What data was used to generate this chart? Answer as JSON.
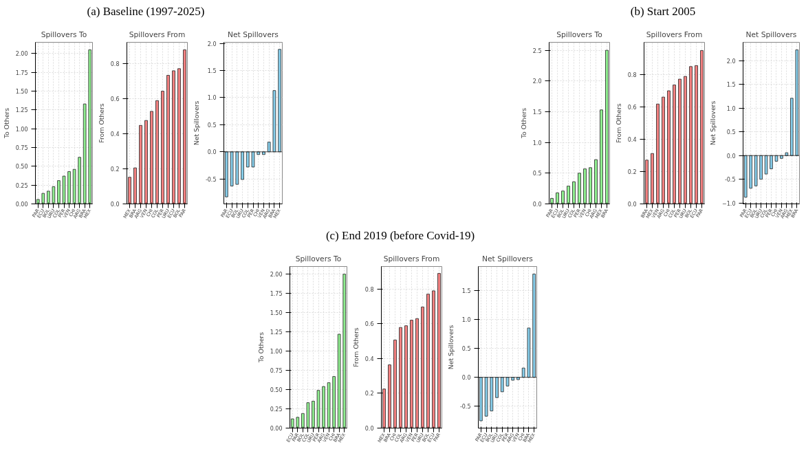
{
  "chart_data": [
    {
      "type": "bar",
      "title": "Spillovers To",
      "ylabel": "To Others",
      "annotations": [
        "(a) Baseline (1997-2025)"
      ],
      "categories": [
        "PAR",
        "ECU",
        "BOL",
        "URU",
        "COL",
        "PER",
        "VEN",
        "CHI",
        "ARG",
        "BRA",
        "MEX"
      ],
      "values": [
        0.06,
        0.14,
        0.17,
        0.23,
        0.31,
        0.37,
        0.43,
        0.46,
        0.62,
        1.33,
        2.05
      ],
      "color": "#90ee90",
      "ylim": [
        0,
        2.15
      ],
      "yticks": [
        {
          "value": 0,
          "label": "0.00"
        },
        0.25,
        {
          "value": 0.5,
          "label": "0.50"
        },
        0.75,
        {
          "value": 1,
          "label": "1.00"
        },
        1.25,
        {
          "value": 1.5,
          "label": "1.50"
        },
        1.75,
        {
          "value": 2,
          "label": "2.00"
        }
      ],
      "grid": true
    },
    {
      "type": "bar",
      "title": "Spillovers From",
      "ylabel": "From Others",
      "categories": [
        "MEX",
        "BRA",
        "ARG",
        "VEN",
        "CHI",
        "COL",
        "PER",
        "URU",
        "ECU",
        "BOL",
        "PAR"
      ],
      "values": [
        0.152,
        0.205,
        0.447,
        0.475,
        0.527,
        0.588,
        0.642,
        0.732,
        0.758,
        0.77,
        0.877
      ],
      "color": "#f08080",
      "ylim": [
        0,
        0.92
      ],
      "yticks": [
        {
          "value": 0,
          "label": "0.0"
        },
        0.2,
        0.4,
        0.6,
        0.8
      ],
      "grid": true
    },
    {
      "type": "bar",
      "title": "Net Spillovers",
      "ylabel": "Net Spillovers",
      "categories": [
        "PAR",
        "ECU",
        "BOL",
        "URU",
        "COL",
        "PER",
        "CHI",
        "VEN",
        "ARG",
        "BRA",
        "MEX"
      ],
      "values": [
        -0.83,
        -0.63,
        -0.6,
        -0.51,
        -0.28,
        -0.28,
        -0.05,
        -0.05,
        0.18,
        1.13,
        1.89
      ],
      "color": "#87ceeb",
      "ylim": [
        -0.96,
        2.02
      ],
      "yticks": [
        -0.5,
        {
          "value": 0,
          "label": "0.0"
        },
        0.5,
        {
          "value": 1,
          "label": "1.0"
        },
        1.5,
        {
          "value": 2,
          "label": "2.0"
        }
      ],
      "grid": true
    },
    {
      "type": "bar",
      "title": "Spillovers To",
      "ylabel": "To Others",
      "annotations": [
        "(b) Start 2005"
      ],
      "categories": [
        "PAR",
        "ECU",
        "BOL",
        "URU",
        "COL",
        "PER",
        "VEN",
        "CHI",
        "ARG",
        "MEX",
        "BRA"
      ],
      "values": [
        0.09,
        0.18,
        0.21,
        0.29,
        0.36,
        0.5,
        0.57,
        0.59,
        0.72,
        1.53,
        2.5
      ],
      "color": "#90ee90",
      "ylim": [
        0,
        2.63
      ],
      "yticks": [
        {
          "value": 0,
          "label": "0.0"
        },
        0.5,
        {
          "value": 1,
          "label": "1.0"
        },
        1.5,
        {
          "value": 2,
          "label": "2.0"
        },
        2.5
      ],
      "grid": true
    },
    {
      "type": "bar",
      "title": "Spillovers From",
      "ylabel": "From Others",
      "categories": [
        "BRA",
        "MEX",
        "VEN",
        "ARG",
        "CHI",
        "COL",
        "PER",
        "URU",
        "BOL",
        "ECU",
        "PAR"
      ],
      "values": [
        0.271,
        0.312,
        0.618,
        0.661,
        0.7,
        0.736,
        0.772,
        0.789,
        0.85,
        0.856,
        0.949
      ],
      "color": "#f08080",
      "ylim": [
        0,
        1.0
      ],
      "yticks": [
        {
          "value": 0,
          "label": "0.0"
        },
        0.2,
        0.4,
        0.6,
        0.8
      ],
      "grid": true
    },
    {
      "type": "bar",
      "title": "Net Spillovers",
      "ylabel": "Net Spillovers",
      "categories": [
        "PAR",
        "ECU",
        "BOL",
        "URU",
        "COL",
        "PER",
        "CHI",
        "VEN",
        "ARG",
        "MEX",
        "BRA"
      ],
      "values": [
        -0.88,
        -0.69,
        -0.64,
        -0.5,
        -0.39,
        -0.28,
        -0.12,
        -0.06,
        0.06,
        1.21,
        2.23
      ],
      "color": "#87ceeb",
      "ylim": [
        -1.02,
        2.39
      ],
      "yticks": [
        {
          "value": -1,
          "label": "−1.0"
        },
        -0.5,
        {
          "value": 0,
          "label": "0.0"
        },
        0.5,
        {
          "value": 1,
          "label": "1.0"
        },
        1.5,
        {
          "value": 2,
          "label": "2.0"
        }
      ],
      "grid": true
    },
    {
      "type": "bar",
      "title": "Spillovers To",
      "ylabel": "To Others",
      "annotations": [
        "(c) End 2019 (before Covid-19)"
      ],
      "categories": [
        "ECU",
        "PAR",
        "BOL",
        "COL",
        "URU",
        "PER",
        "ARG",
        "VEN",
        "CHI",
        "BRA",
        "MEX"
      ],
      "values": [
        0.12,
        0.14,
        0.19,
        0.33,
        0.35,
        0.49,
        0.54,
        0.59,
        0.67,
        1.22,
        2.0
      ],
      "color": "#90ee90",
      "ylim": [
        0,
        2.1
      ],
      "yticks": [
        {
          "value": 0,
          "label": "0.00"
        },
        0.25,
        {
          "value": 0.5,
          "label": "0.50"
        },
        0.75,
        {
          "value": 1,
          "label": "1.00"
        },
        1.25,
        {
          "value": 1.5,
          "label": "1.50"
        },
        1.75,
        {
          "value": 2,
          "label": "2.00"
        }
      ],
      "grid": true
    },
    {
      "type": "bar",
      "title": "Spillovers From",
      "ylabel": "From Others",
      "categories": [
        "MEX",
        "BRA",
        "CHI",
        "COL",
        "ARG",
        "VEN",
        "PER",
        "URU",
        "BOL",
        "ECU",
        "PAR"
      ],
      "values": [
        0.225,
        0.364,
        0.507,
        0.579,
        0.589,
        0.621,
        0.63,
        0.697,
        0.771,
        0.79,
        0.89
      ],
      "color": "#f08080",
      "ylim": [
        0,
        0.93
      ],
      "yticks": [
        {
          "value": 0,
          "label": "0.0"
        },
        0.2,
        0.4,
        0.6,
        0.8
      ],
      "grid": true
    },
    {
      "type": "bar",
      "title": "Net Spillovers",
      "ylabel": "Net Spillovers",
      "categories": [
        "PAR",
        "ECU",
        "BOL",
        "URU",
        "COL",
        "PER",
        "ARG",
        "VEN",
        "CHI",
        "BRA",
        "MEX"
      ],
      "values": [
        -0.75,
        -0.67,
        -0.58,
        -0.35,
        -0.25,
        -0.15,
        -0.05,
        -0.04,
        0.16,
        0.85,
        1.78
      ],
      "color": "#87ceeb",
      "ylim": [
        -0.875,
        1.91
      ],
      "yticks": [
        -0.5,
        {
          "value": 0,
          "label": "0.0"
        },
        0.5,
        {
          "value": 1,
          "label": "1.0"
        },
        1.5
      ],
      "grid": true
    }
  ]
}
